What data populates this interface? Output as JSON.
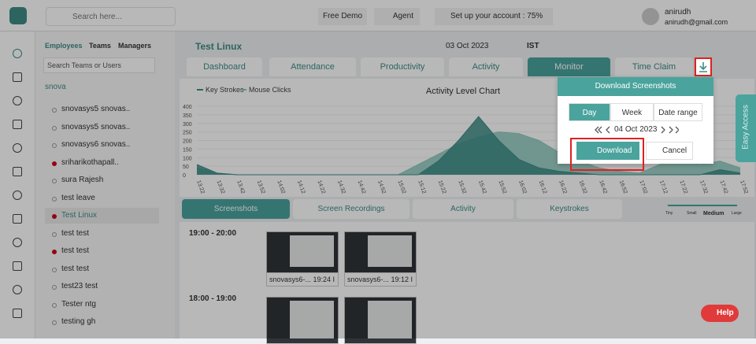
{
  "topbar": {
    "search_placeholder": "Search here...",
    "free_demo": "Free Demo",
    "agent": "Agent",
    "setup": "Set up your account : 75%",
    "user_name": "anirudh",
    "user_email": "anirudh@gmail.com"
  },
  "sidebar": {
    "tabs": [
      "Employees",
      "Teams",
      "Managers"
    ],
    "search_placeholder": "Search Teams or Users",
    "group": "snova",
    "users": [
      {
        "name": "snovasys5 snovas..",
        "dot": "hollow"
      },
      {
        "name": "snovasys5 snovas..",
        "dot": "hollow"
      },
      {
        "name": "snovasys6 snovas..",
        "dot": "hollow"
      },
      {
        "name": "sriharikothapall..",
        "dot": "filled"
      },
      {
        "name": "sura Rajesh",
        "dot": "hollow"
      },
      {
        "name": "test leave",
        "dot": "hollow"
      },
      {
        "name": "Test Linux",
        "dot": "filled",
        "selected": true
      },
      {
        "name": "test test",
        "dot": "hollow"
      },
      {
        "name": "test test",
        "dot": "filled"
      },
      {
        "name": "test test",
        "dot": "hollow"
      },
      {
        "name": "test23 test",
        "dot": "hollow"
      },
      {
        "name": "Tester ntg",
        "dot": "hollow"
      },
      {
        "name": "testing gh",
        "dot": "hollow"
      }
    ]
  },
  "header": {
    "title": "Test Linux",
    "date": "03 Oct 2023",
    "timezone": "IST"
  },
  "tabs": [
    "Dashboard",
    "Attendance",
    "Productivity",
    "Activity",
    "Monitor",
    "Time Claim"
  ],
  "chart_data": {
    "type": "area",
    "title": "Activity Level Chart",
    "x": [
      "13:22",
      "13:32",
      "13:42",
      "13:52",
      "14:02",
      "14:12",
      "14:22",
      "14:32",
      "14:42",
      "14:52",
      "15:02",
      "15:12",
      "15:22",
      "15:32",
      "15:42",
      "15:52",
      "16:02",
      "16:12",
      "16:22",
      "16:32",
      "16:42",
      "16:52",
      "17:02",
      "17:12",
      "17:22",
      "17:32",
      "17:42",
      "17:52"
    ],
    "series": [
      {
        "name": "Key Strokes",
        "color": "#3d8c86",
        "values": [
          60,
          10,
          0,
          0,
          0,
          0,
          0,
          0,
          0,
          0,
          0,
          0,
          80,
          200,
          340,
          200,
          90,
          40,
          20,
          10,
          0,
          0,
          0,
          0,
          0,
          0,
          30,
          10
        ]
      },
      {
        "name": "Mouse Clicks",
        "color": "#8cc8bd",
        "values": [
          40,
          10,
          0,
          0,
          0,
          0,
          0,
          0,
          0,
          0,
          0,
          60,
          120,
          180,
          220,
          250,
          240,
          200,
          130,
          80,
          40,
          20,
          10,
          60,
          90,
          60,
          80,
          40
        ]
      }
    ],
    "ylim": [
      0,
      400
    ],
    "yticks": [
      0,
      50,
      100,
      150,
      200,
      250,
      300,
      350,
      400
    ]
  },
  "media_tabs": [
    "Screenshots",
    "Screen Recordings",
    "Activity",
    "Keystrokes"
  ],
  "sizes": [
    "Tiny",
    "Small",
    "Medium",
    "Large"
  ],
  "groups": [
    {
      "time": "19:00 - 20:00",
      "shots": [
        "snovasys6-... 19:24 I",
        "snovasys6-... 19:12 I"
      ]
    },
    {
      "time": "18:00 - 19:00"
    }
  ],
  "modal": {
    "title": "Download Screenshots",
    "ranges": [
      "Day",
      "Week",
      "Date range"
    ],
    "date": "04 Oct 2023",
    "download": "Download",
    "cancel": "Cancel"
  },
  "easy_access": "Easy Access",
  "help": "Help"
}
